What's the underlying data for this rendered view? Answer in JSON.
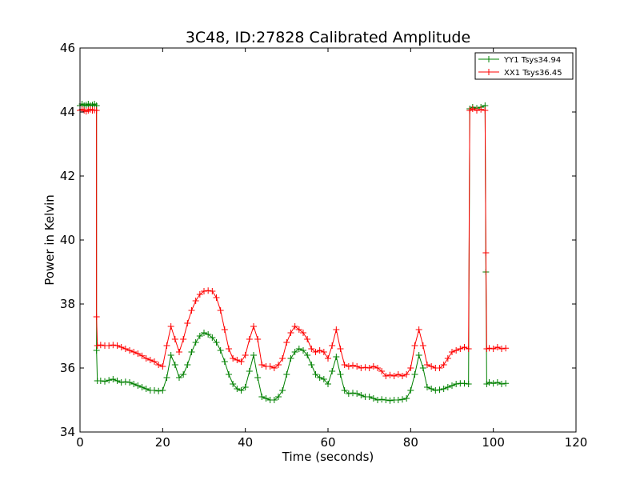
{
  "chart_data": {
    "type": "line",
    "title": "3C48, ID:27828 Calibrated Amplitude",
    "xlabel": "Time (seconds)",
    "ylabel": "Power in Kelvin",
    "xlim": [
      0,
      120
    ],
    "ylim": [
      34,
      46
    ],
    "xticks": [
      0,
      20,
      40,
      60,
      80,
      100,
      120
    ],
    "yticks": [
      34,
      36,
      38,
      40,
      42,
      44,
      46
    ],
    "grid": false,
    "legend_position": "top-right",
    "marker": "plus",
    "series": [
      {
        "name": "YY1 Tsys34.94",
        "color": "#008000",
        "points": [
          [
            0,
            44.2
          ],
          [
            0.5,
            44.25
          ],
          [
            1,
            44.2
          ],
          [
            1.5,
            44.22
          ],
          [
            2,
            44.25
          ],
          [
            2.5,
            44.2
          ],
          [
            3,
            44.22
          ],
          [
            3.5,
            44.25
          ],
          [
            4,
            44.2
          ],
          [
            4,
            36.55
          ],
          [
            4.2,
            35.6
          ],
          [
            5,
            35.6
          ],
          [
            6,
            35.58
          ],
          [
            7,
            35.62
          ],
          [
            8,
            35.65
          ],
          [
            9,
            35.6
          ],
          [
            10,
            35.55
          ],
          [
            11,
            35.57
          ],
          [
            12,
            35.55
          ],
          [
            13,
            35.5
          ],
          [
            14,
            35.45
          ],
          [
            15,
            35.4
          ],
          [
            16,
            35.35
          ],
          [
            17,
            35.3
          ],
          [
            18,
            35.3
          ],
          [
            19,
            35.28
          ],
          [
            20,
            35.3
          ],
          [
            21,
            35.7
          ],
          [
            22,
            36.4
          ],
          [
            23,
            36.1
          ],
          [
            24,
            35.7
          ],
          [
            25,
            35.8
          ],
          [
            26,
            36.1
          ],
          [
            27,
            36.5
          ],
          [
            28,
            36.8
          ],
          [
            29,
            37.0
          ],
          [
            30,
            37.1
          ],
          [
            31,
            37.05
          ],
          [
            32,
            36.95
          ],
          [
            33,
            36.8
          ],
          [
            34,
            36.55
          ],
          [
            35,
            36.2
          ],
          [
            36,
            35.8
          ],
          [
            37,
            35.5
          ],
          [
            38,
            35.35
          ],
          [
            39,
            35.3
          ],
          [
            40,
            35.4
          ],
          [
            41,
            35.9
          ],
          [
            42,
            36.4
          ],
          [
            43,
            35.7
          ],
          [
            44,
            35.1
          ],
          [
            45,
            35.05
          ],
          [
            46,
            35.0
          ],
          [
            47,
            35.0
          ],
          [
            48,
            35.1
          ],
          [
            49,
            35.3
          ],
          [
            50,
            35.8
          ],
          [
            51,
            36.3
          ],
          [
            52,
            36.5
          ],
          [
            53,
            36.6
          ],
          [
            54,
            36.55
          ],
          [
            55,
            36.4
          ],
          [
            56,
            36.1
          ],
          [
            57,
            35.8
          ],
          [
            58,
            35.7
          ],
          [
            59,
            35.65
          ],
          [
            60,
            35.5
          ],
          [
            61,
            35.9
          ],
          [
            62,
            36.35
          ],
          [
            63,
            35.8
          ],
          [
            64,
            35.3
          ],
          [
            65,
            35.2
          ],
          [
            66,
            35.22
          ],
          [
            67,
            35.2
          ],
          [
            68,
            35.15
          ],
          [
            69,
            35.1
          ],
          [
            70,
            35.1
          ],
          [
            71,
            35.05
          ],
          [
            72,
            35.0
          ],
          [
            73,
            35.02
          ],
          [
            74,
            35.0
          ],
          [
            75,
            34.98
          ],
          [
            76,
            35.0
          ],
          [
            77,
            35.0
          ],
          [
            78,
            35.02
          ],
          [
            79,
            35.05
          ],
          [
            80,
            35.3
          ],
          [
            81,
            35.8
          ],
          [
            82,
            36.4
          ],
          [
            83,
            36.0
          ],
          [
            84,
            35.4
          ],
          [
            85,
            35.35
          ],
          [
            86,
            35.3
          ],
          [
            87,
            35.32
          ],
          [
            88,
            35.35
          ],
          [
            89,
            35.4
          ],
          [
            90,
            35.45
          ],
          [
            91,
            35.5
          ],
          [
            92,
            35.52
          ],
          [
            93,
            35.52
          ],
          [
            94,
            35.5
          ],
          [
            94.3,
            44.1
          ],
          [
            95,
            44.15
          ],
          [
            96,
            44.12
          ],
          [
            97,
            44.15
          ],
          [
            98,
            44.2
          ],
          [
            98.2,
            39.0
          ],
          [
            98.4,
            35.5
          ],
          [
            99,
            35.55
          ],
          [
            100,
            35.52
          ],
          [
            101,
            35.55
          ],
          [
            102,
            35.5
          ],
          [
            103,
            35.52
          ]
        ]
      },
      {
        "name": "XX1 Tsys36.45",
        "color": "#ff0000",
        "points": [
          [
            0,
            44.05
          ],
          [
            0.5,
            44.08
          ],
          [
            1,
            44.05
          ],
          [
            1.5,
            44.02
          ],
          [
            2,
            44.05
          ],
          [
            2.5,
            44.08
          ],
          [
            3,
            44.05
          ],
          [
            3.5,
            44.06
          ],
          [
            4,
            44.05
          ],
          [
            4,
            37.6
          ],
          [
            4.2,
            36.7
          ],
          [
            5,
            36.72
          ],
          [
            6,
            36.7
          ],
          [
            7,
            36.7
          ],
          [
            8,
            36.72
          ],
          [
            9,
            36.7
          ],
          [
            10,
            36.65
          ],
          [
            11,
            36.6
          ],
          [
            12,
            36.55
          ],
          [
            13,
            36.5
          ],
          [
            14,
            36.45
          ],
          [
            15,
            36.38
          ],
          [
            16,
            36.3
          ],
          [
            17,
            36.25
          ],
          [
            18,
            36.2
          ],
          [
            19,
            36.1
          ],
          [
            20,
            36.05
          ],
          [
            21,
            36.7
          ],
          [
            22,
            37.3
          ],
          [
            23,
            36.9
          ],
          [
            24,
            36.5
          ],
          [
            25,
            36.9
          ],
          [
            26,
            37.4
          ],
          [
            27,
            37.8
          ],
          [
            28,
            38.1
          ],
          [
            29,
            38.3
          ],
          [
            30,
            38.4
          ],
          [
            31,
            38.42
          ],
          [
            32,
            38.4
          ],
          [
            33,
            38.2
          ],
          [
            34,
            37.8
          ],
          [
            35,
            37.2
          ],
          [
            36,
            36.6
          ],
          [
            37,
            36.3
          ],
          [
            38,
            36.25
          ],
          [
            39,
            36.2
          ],
          [
            40,
            36.4
          ],
          [
            41,
            36.9
          ],
          [
            42,
            37.3
          ],
          [
            43,
            36.9
          ],
          [
            44,
            36.1
          ],
          [
            45,
            36.05
          ],
          [
            46,
            36.05
          ],
          [
            47,
            36.0
          ],
          [
            48,
            36.1
          ],
          [
            49,
            36.3
          ],
          [
            50,
            36.8
          ],
          [
            51,
            37.1
          ],
          [
            52,
            37.3
          ],
          [
            53,
            37.2
          ],
          [
            54,
            37.1
          ],
          [
            55,
            36.9
          ],
          [
            56,
            36.6
          ],
          [
            57,
            36.5
          ],
          [
            58,
            36.55
          ],
          [
            59,
            36.5
          ],
          [
            60,
            36.3
          ],
          [
            61,
            36.7
          ],
          [
            62,
            37.2
          ],
          [
            63,
            36.6
          ],
          [
            64,
            36.1
          ],
          [
            65,
            36.05
          ],
          [
            66,
            36.08
          ],
          [
            67,
            36.05
          ],
          [
            68,
            36.0
          ],
          [
            69,
            36.02
          ],
          [
            70,
            36.0
          ],
          [
            71,
            36.05
          ],
          [
            72,
            36.0
          ],
          [
            73,
            35.9
          ],
          [
            74,
            35.75
          ],
          [
            75,
            35.78
          ],
          [
            76,
            35.75
          ],
          [
            77,
            35.8
          ],
          [
            78,
            35.75
          ],
          [
            79,
            35.8
          ],
          [
            80,
            36.0
          ],
          [
            81,
            36.7
          ],
          [
            82,
            37.2
          ],
          [
            83,
            36.7
          ],
          [
            84,
            36.1
          ],
          [
            85,
            36.05
          ],
          [
            86,
            36.0
          ],
          [
            87,
            36.0
          ],
          [
            88,
            36.1
          ],
          [
            89,
            36.3
          ],
          [
            90,
            36.5
          ],
          [
            91,
            36.55
          ],
          [
            92,
            36.6
          ],
          [
            93,
            36.65
          ],
          [
            94,
            36.6
          ],
          [
            94.3,
            44.05
          ],
          [
            95,
            44.1
          ],
          [
            96,
            44.05
          ],
          [
            97,
            44.08
          ],
          [
            98,
            44.05
          ],
          [
            98.2,
            39.6
          ],
          [
            98.4,
            36.6
          ],
          [
            99,
            36.62
          ],
          [
            100,
            36.6
          ],
          [
            101,
            36.65
          ],
          [
            102,
            36.6
          ],
          [
            103,
            36.62
          ]
        ]
      }
    ]
  }
}
